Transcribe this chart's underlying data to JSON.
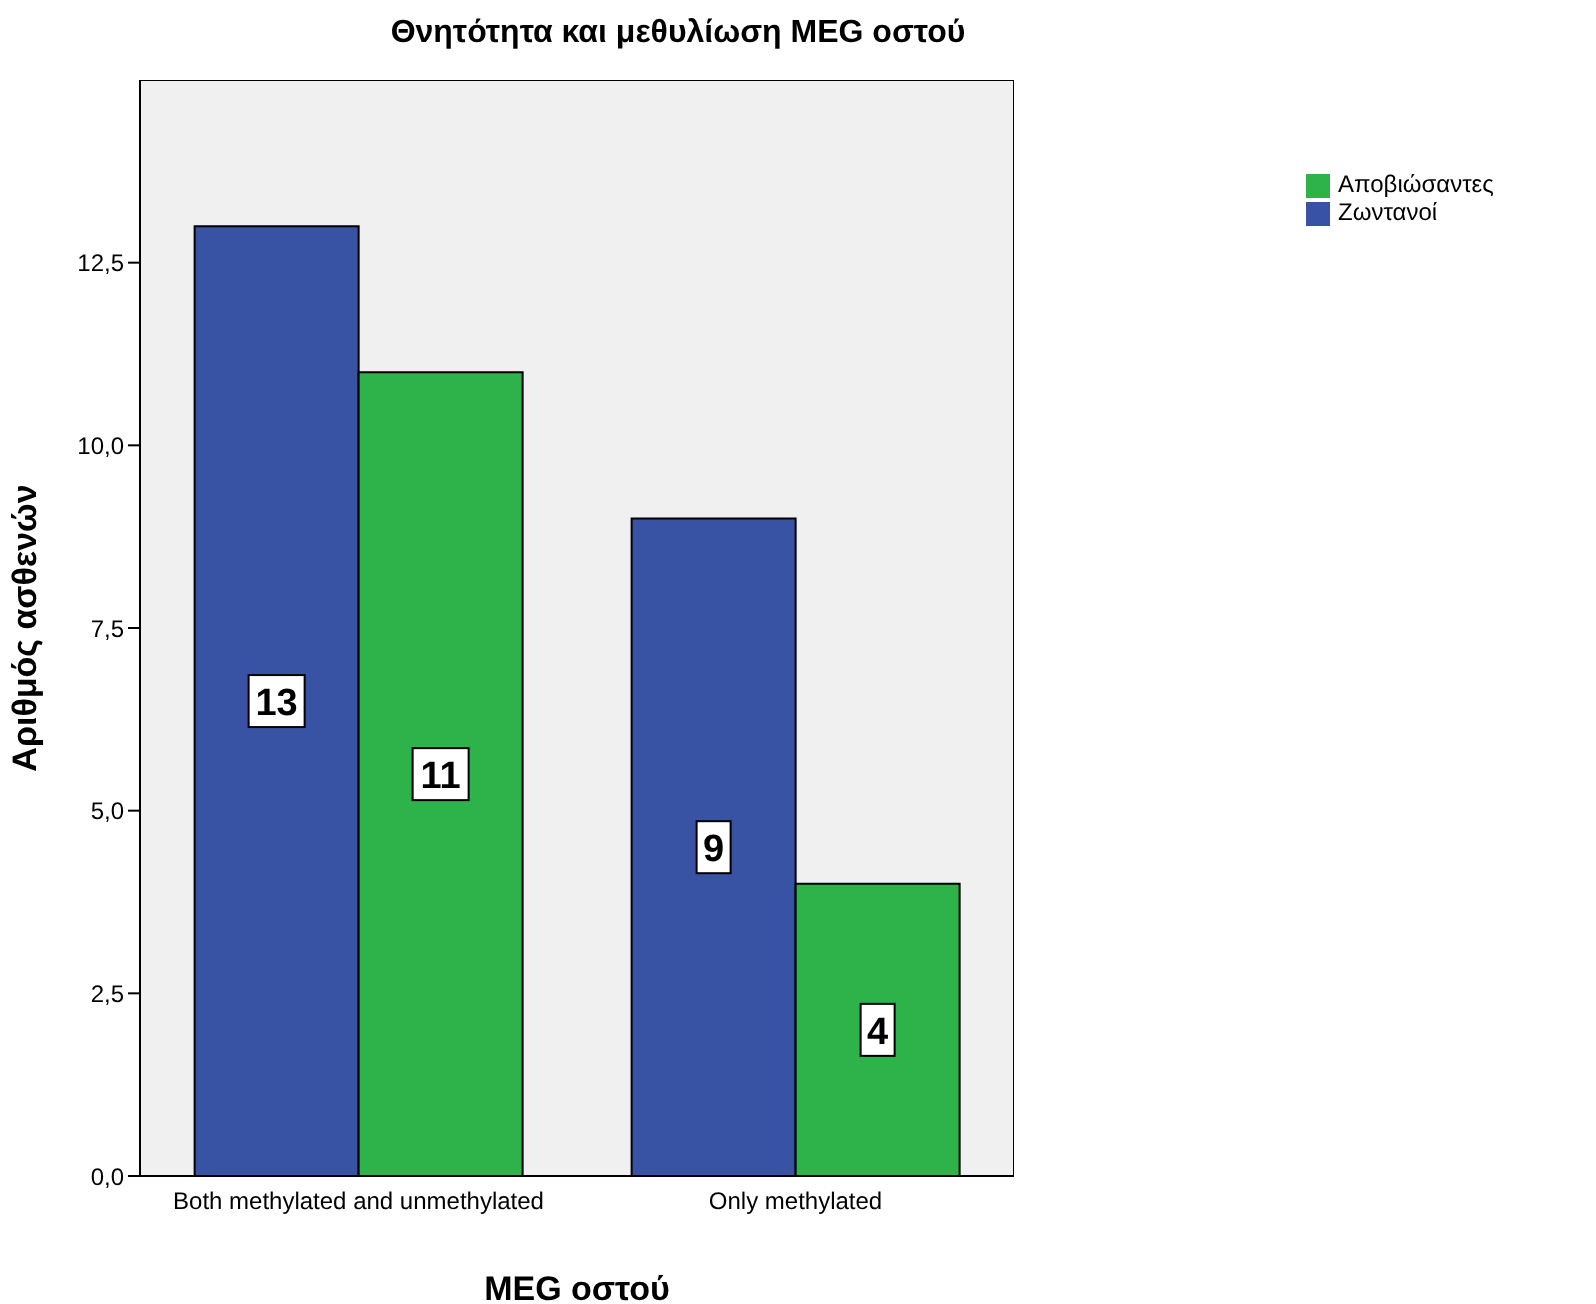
{
  "chart_data": {
    "type": "bar",
    "title": "Θνητότητα και μεθυλίωση MEG οστού",
    "xlabel": "MEG οστού",
    "ylabel": "Αριθμός ασθενών",
    "categories": [
      "Both methylated and unmethylated",
      "Only methylated"
    ],
    "series": [
      {
        "name": "Ζωντανοί",
        "color": "#3953a4",
        "values": [
          13,
          9
        ]
      },
      {
        "name": "Αποβιώσαντες",
        "color": "#2db34a",
        "values": [
          11,
          4
        ]
      }
    ],
    "ylim": [
      0,
      15
    ],
    "yticks": [
      {
        "value": 0,
        "label": "0,0"
      },
      {
        "value": 2.5,
        "label": "2,5"
      },
      {
        "value": 5,
        "label": "5,0"
      },
      {
        "value": 7.5,
        "label": "7,5"
      },
      {
        "value": 10,
        "label": "10,0"
      },
      {
        "value": 12.5,
        "label": "12,5"
      }
    ],
    "data_labels": true,
    "legend": "top right"
  }
}
